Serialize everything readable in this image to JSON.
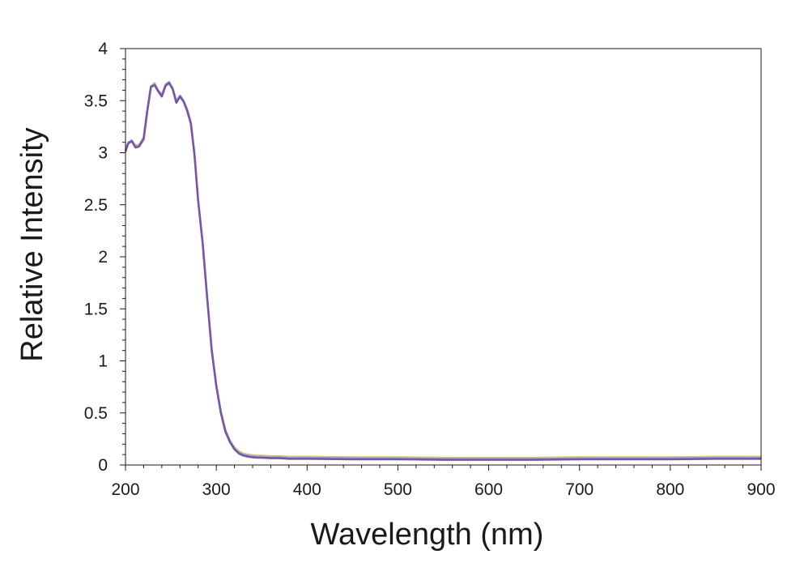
{
  "chart_data": {
    "type": "line",
    "title": "",
    "xlabel": "Wavelength (nm)",
    "ylabel": "Relative Intensity",
    "xlim": [
      200,
      900
    ],
    "ylim": [
      0,
      4
    ],
    "x_ticks": [
      200,
      300,
      400,
      500,
      600,
      700,
      800,
      900
    ],
    "y_ticks": [
      0,
      0.5,
      1,
      1.5,
      2,
      2.5,
      3,
      3.5,
      4
    ],
    "y_tick_labels": [
      "0",
      "0.5",
      "1",
      "1.5",
      "2",
      "2.5",
      "3",
      "3.5",
      "4"
    ],
    "grid": false,
    "legend": "none",
    "series": [
      {
        "color": "#c8c85a",
        "x": [
          200,
          203,
          207,
          211,
          215,
          220,
          224,
          228,
          232,
          236,
          240,
          244,
          248,
          252,
          256,
          260,
          264,
          268,
          272,
          276,
          280,
          285,
          290,
          295,
          300,
          305,
          310,
          315,
          320,
          325,
          330,
          335,
          340,
          345,
          350,
          360,
          370,
          380,
          400,
          450,
          500,
          550,
          600,
          650,
          700,
          750,
          800,
          850,
          900
        ],
        "y": [
          3.03,
          3.1,
          3.12,
          3.07,
          3.08,
          3.15,
          3.42,
          3.64,
          3.67,
          3.6,
          3.56,
          3.66,
          3.68,
          3.62,
          3.5,
          3.55,
          3.5,
          3.42,
          3.3,
          3.0,
          2.55,
          2.15,
          1.62,
          1.12,
          0.78,
          0.52,
          0.34,
          0.24,
          0.17,
          0.13,
          0.11,
          0.1,
          0.095,
          0.09,
          0.09,
          0.085,
          0.085,
          0.08,
          0.08,
          0.075,
          0.075,
          0.07,
          0.07,
          0.07,
          0.075,
          0.075,
          0.075,
          0.08,
          0.08
        ]
      },
      {
        "color": "#9aa8d0",
        "x": [
          200,
          203,
          207,
          211,
          215,
          220,
          224,
          228,
          232,
          236,
          240,
          244,
          248,
          252,
          256,
          260,
          264,
          268,
          272,
          276,
          280,
          285,
          290,
          295,
          300,
          305,
          310,
          315,
          320,
          325,
          330,
          335,
          340,
          345,
          350,
          360,
          370,
          380,
          400,
          450,
          500,
          550,
          600,
          650,
          700,
          750,
          800,
          850,
          900
        ],
        "y": [
          3.02,
          3.1,
          3.12,
          3.06,
          3.07,
          3.14,
          3.41,
          3.64,
          3.66,
          3.6,
          3.55,
          3.65,
          3.68,
          3.62,
          3.49,
          3.55,
          3.5,
          3.41,
          3.29,
          2.99,
          2.55,
          2.14,
          1.61,
          1.11,
          0.77,
          0.51,
          0.33,
          0.23,
          0.16,
          0.12,
          0.1,
          0.09,
          0.085,
          0.08,
          0.08,
          0.075,
          0.075,
          0.07,
          0.07,
          0.065,
          0.065,
          0.06,
          0.06,
          0.06,
          0.065,
          0.065,
          0.065,
          0.07,
          0.07
        ]
      },
      {
        "color": "#7755a8",
        "x": [
          200,
          203,
          207,
          211,
          215,
          220,
          224,
          228,
          232,
          236,
          240,
          244,
          248,
          252,
          256,
          260,
          264,
          268,
          272,
          276,
          280,
          285,
          290,
          295,
          300,
          305,
          310,
          315,
          320,
          325,
          330,
          335,
          340,
          345,
          350,
          360,
          370,
          380,
          400,
          450,
          500,
          550,
          600,
          650,
          700,
          750,
          800,
          850,
          900
        ],
        "y": [
          3.01,
          3.09,
          3.11,
          3.05,
          3.06,
          3.13,
          3.4,
          3.63,
          3.65,
          3.59,
          3.54,
          3.64,
          3.67,
          3.61,
          3.48,
          3.54,
          3.49,
          3.4,
          3.28,
          2.98,
          2.54,
          2.13,
          1.6,
          1.1,
          0.76,
          0.5,
          0.32,
          0.22,
          0.15,
          0.11,
          0.09,
          0.08,
          0.075,
          0.07,
          0.07,
          0.065,
          0.065,
          0.06,
          0.06,
          0.055,
          0.055,
          0.05,
          0.05,
          0.05,
          0.055,
          0.055,
          0.055,
          0.06,
          0.06
        ]
      }
    ]
  }
}
